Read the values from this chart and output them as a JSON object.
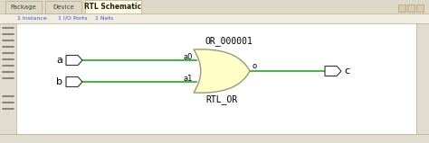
{
  "bg_color": "#f0ece0",
  "toolbar_bg": "#f0ece0",
  "tab_bar_bg": "#ddd8c8",
  "active_tab_color": "#fffde8",
  "tab_text_active": "RTL Schematic",
  "tab_text_1": "Package",
  "tab_text_2": "Device",
  "toolbar_links": [
    "1 Instance",
    "1 I/O Ports",
    "1 Nets"
  ],
  "label_a": "a",
  "label_b": "b",
  "label_c": "c",
  "label_a0": "a0",
  "label_a1": "a1",
  "label_o": "o",
  "gate_label": "OR_000001",
  "gate_sub_label": "RTL_OR",
  "wire_color": "#22aa22",
  "gate_fill": "#ffffc8",
  "gate_edge": "#999977",
  "buffer_fill": "#ffffff",
  "buffer_edge": "#333333",
  "text_color": "#000000",
  "link_color": "#3355cc",
  "sidebar_bg": "#e0dcd0",
  "main_bg": "#ffffff"
}
